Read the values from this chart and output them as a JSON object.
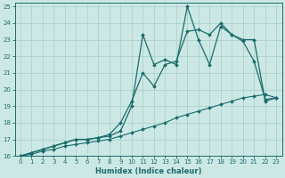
{
  "background_color": "#cce8e5",
  "line_color": "#1a6b6b",
  "grid_color": "#a8ceca",
  "xlabel": "Humidex (Indice chaleur)",
  "xlim": [
    -0.5,
    23.5
  ],
  "ylim": [
    16,
    25.2
  ],
  "yticks": [
    16,
    17,
    18,
    19,
    20,
    21,
    22,
    23,
    24,
    25
  ],
  "xticks": [
    0,
    1,
    2,
    3,
    4,
    5,
    6,
    7,
    8,
    9,
    10,
    11,
    12,
    13,
    14,
    15,
    16,
    17,
    18,
    19,
    20,
    21,
    22,
    23
  ],
  "line1_x": [
    0,
    1,
    2,
    3,
    4,
    5,
    6,
    7,
    8,
    9,
    10,
    11,
    12,
    13,
    14,
    15,
    16,
    17,
    18,
    19,
    20,
    21,
    22,
    23
  ],
  "line1_y": [
    16.0,
    16.2,
    16.4,
    16.6,
    16.8,
    17.0,
    17.0,
    17.1,
    17.2,
    17.5,
    19.0,
    23.3,
    21.5,
    21.8,
    21.5,
    25.0,
    23.0,
    21.5,
    23.8,
    23.3,
    23.0,
    23.0,
    19.3,
    19.5
  ],
  "line2_x": [
    0,
    1,
    2,
    3,
    4,
    5,
    6,
    7,
    8,
    9,
    10,
    11,
    12,
    13,
    14,
    15,
    16,
    17,
    18,
    19,
    20,
    21,
    22,
    23
  ],
  "line2_y": [
    16.0,
    16.2,
    16.4,
    16.6,
    16.8,
    17.0,
    17.0,
    17.1,
    17.3,
    18.0,
    19.3,
    21.0,
    20.2,
    21.5,
    21.7,
    23.5,
    23.6,
    23.3,
    24.0,
    23.3,
    22.9,
    21.7,
    19.4,
    19.5
  ],
  "line3_x": [
    0,
    1,
    2,
    3,
    4,
    5,
    6,
    7,
    8,
    9,
    10,
    11,
    12,
    13,
    14,
    15,
    16,
    17,
    18,
    19,
    20,
    21,
    22,
    23
  ],
  "line3_y": [
    16.0,
    16.1,
    16.3,
    16.4,
    16.6,
    16.7,
    16.8,
    16.9,
    17.0,
    17.2,
    17.4,
    17.6,
    17.8,
    18.0,
    18.3,
    18.5,
    18.7,
    18.9,
    19.1,
    19.3,
    19.5,
    19.6,
    19.7,
    19.5
  ]
}
